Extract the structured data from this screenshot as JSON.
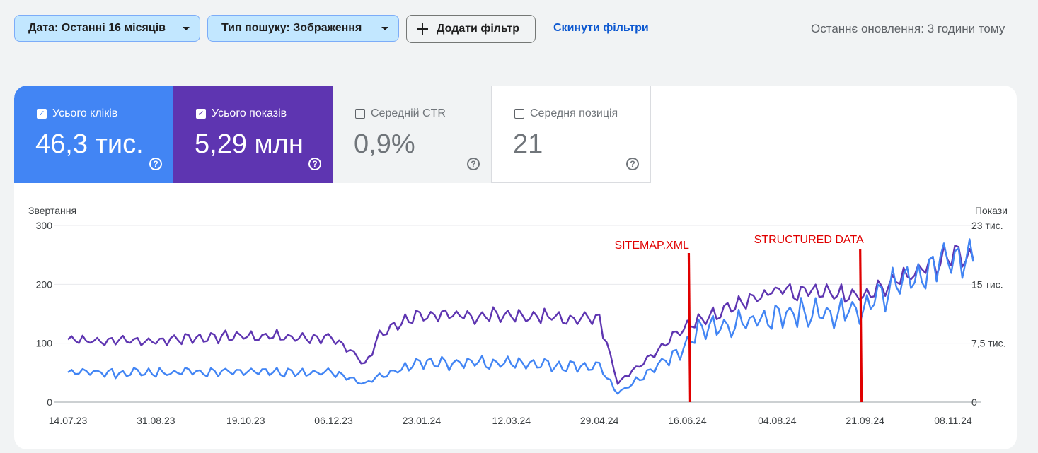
{
  "filters": {
    "date_chip": "Дата: Останні 16 місяців",
    "type_chip": "Тип пошуку: Зображення",
    "add_filter": "Додати фільтр",
    "reset": "Скинути фільтри",
    "last_update": "Останнє оновлення: 3 години тому"
  },
  "metrics": {
    "clicks": {
      "label": "Усього кліків",
      "value": "46,3 тис.",
      "checked": true,
      "color": "#4285f4"
    },
    "impressions": {
      "label": "Усього показів",
      "value": "5,29 млн",
      "checked": true,
      "color": "#5e35b1"
    },
    "ctr": {
      "label": "Середній CTR",
      "value": "0,9%",
      "checked": false
    },
    "position": {
      "label": "Середня позиція",
      "value": "21",
      "checked": false
    }
  },
  "chart_data": {
    "type": "line",
    "ylabel_left": "Звертання",
    "ylabel_right": "Покази",
    "y_ticks_left": [
      "0",
      "100",
      "200",
      "300"
    ],
    "y_ticks_right": [
      "0",
      "7,5 тис.",
      "15 тис.",
      "23 тис."
    ],
    "ylim_left": [
      0,
      300
    ],
    "ylim_right": [
      0,
      23000
    ],
    "x_ticks": [
      "14.07.23",
      "31.08.23",
      "19.10.23",
      "06.12.23",
      "23.01.24",
      "12.03.24",
      "29.04.24",
      "16.06.24",
      "04.08.24",
      "21.09.24",
      "08.11.24"
    ],
    "grid": true,
    "series": [
      {
        "name": "Усього кліків",
        "axis": "left",
        "color": "#4285f4",
        "keypoints": [
          [
            "14.07.23",
            50
          ],
          [
            "31.08.23",
            50
          ],
          [
            "19.10.23",
            52
          ],
          [
            "06.12.23",
            50
          ],
          [
            "23.12.23",
            32
          ],
          [
            "01.01.24",
            45
          ],
          [
            "23.01.24",
            68
          ],
          [
            "12.03.24",
            65
          ],
          [
            "29.04.24",
            60
          ],
          [
            "09.05.24",
            15
          ],
          [
            "16.06.24",
            95
          ],
          [
            "20.06.24",
            120
          ],
          [
            "04.08.24",
            148
          ],
          [
            "21.09.24",
            160
          ],
          [
            "10.10.24",
            205
          ],
          [
            "08.11.24",
            245
          ],
          [
            "20.11.24",
            235
          ]
        ]
      },
      {
        "name": "Усього показів",
        "axis": "right",
        "color": "#5e35b1",
        "keypoints": [
          [
            "14.07.23",
            8000
          ],
          [
            "31.08.23",
            8000
          ],
          [
            "19.10.23",
            8600
          ],
          [
            "06.12.23",
            8400
          ],
          [
            "23.12.23",
            5000
          ],
          [
            "01.01.24",
            9000
          ],
          [
            "23.01.24",
            11300
          ],
          [
            "12.03.24",
            11300
          ],
          [
            "29.04.24",
            10900
          ],
          [
            "09.05.24",
            2500
          ],
          [
            "16.06.24",
            10000
          ],
          [
            "04.08.24",
            14700
          ],
          [
            "21.09.24",
            13700
          ],
          [
            "10.10.24",
            15900
          ],
          [
            "08.11.24",
            19000
          ],
          [
            "20.11.24",
            19000
          ]
        ]
      }
    ],
    "annotations": [
      {
        "label": "SITEMAP.XML",
        "date": "16.06.24",
        "color": "#e00000"
      },
      {
        "label": "STRUCTURED DATA",
        "date": "21.09.24",
        "color": "#e00000"
      }
    ]
  }
}
